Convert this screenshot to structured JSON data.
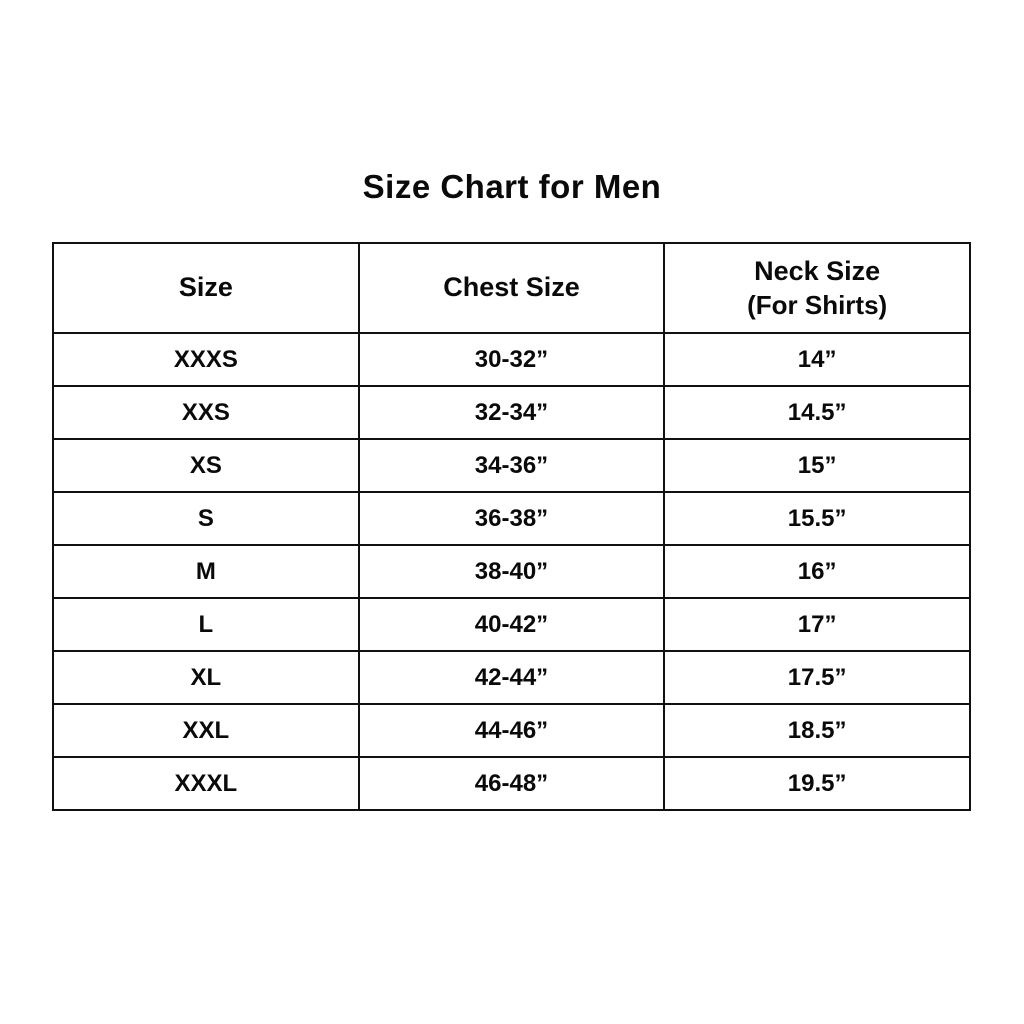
{
  "page": {
    "title": "Size Chart for Men"
  },
  "table": {
    "headers": {
      "size": "Size",
      "chest": "Chest Size",
      "neck": "Neck Size",
      "neck_sub": "(For Shirts)"
    },
    "rows": [
      {
        "size": "XXXS",
        "chest": "30-32”",
        "neck": "14”"
      },
      {
        "size": "XXS",
        "chest": "32-34”",
        "neck": "14.5”"
      },
      {
        "size": "XS",
        "chest": "34-36”",
        "neck": "15”"
      },
      {
        "size": "S",
        "chest": "36-38”",
        "neck": "15.5”"
      },
      {
        "size": "M",
        "chest": "38-40”",
        "neck": "16”"
      },
      {
        "size": "L",
        "chest": "40-42”",
        "neck": "17”"
      },
      {
        "size": "XL",
        "chest": "42-44”",
        "neck": "17.5”"
      },
      {
        "size": "XXL",
        "chest": "44-46”",
        "neck": "18.5”"
      },
      {
        "size": "XXXL",
        "chest": "46-48”",
        "neck": "19.5”"
      }
    ]
  },
  "colors": {
    "background": "#ffffff",
    "text": "#0a0a0a",
    "border": "#111111"
  },
  "chart_data": {
    "type": "table",
    "title": "Size Chart for Men",
    "columns": [
      "Size",
      "Chest Size",
      "Neck Size (For Shirts)"
    ],
    "rows": [
      [
        "XXXS",
        "30-32”",
        "14”"
      ],
      [
        "XXS",
        "32-34”",
        "14.5”"
      ],
      [
        "XS",
        "34-36”",
        "15”"
      ],
      [
        "S",
        "36-38”",
        "15.5”"
      ],
      [
        "M",
        "38-40”",
        "16”"
      ],
      [
        "L",
        "40-42”",
        "17”"
      ],
      [
        "XL",
        "42-44”",
        "17.5”"
      ],
      [
        "XXL",
        "44-46”",
        "18.5”"
      ],
      [
        "XXXL",
        "46-48”",
        "19.5”"
      ]
    ]
  }
}
